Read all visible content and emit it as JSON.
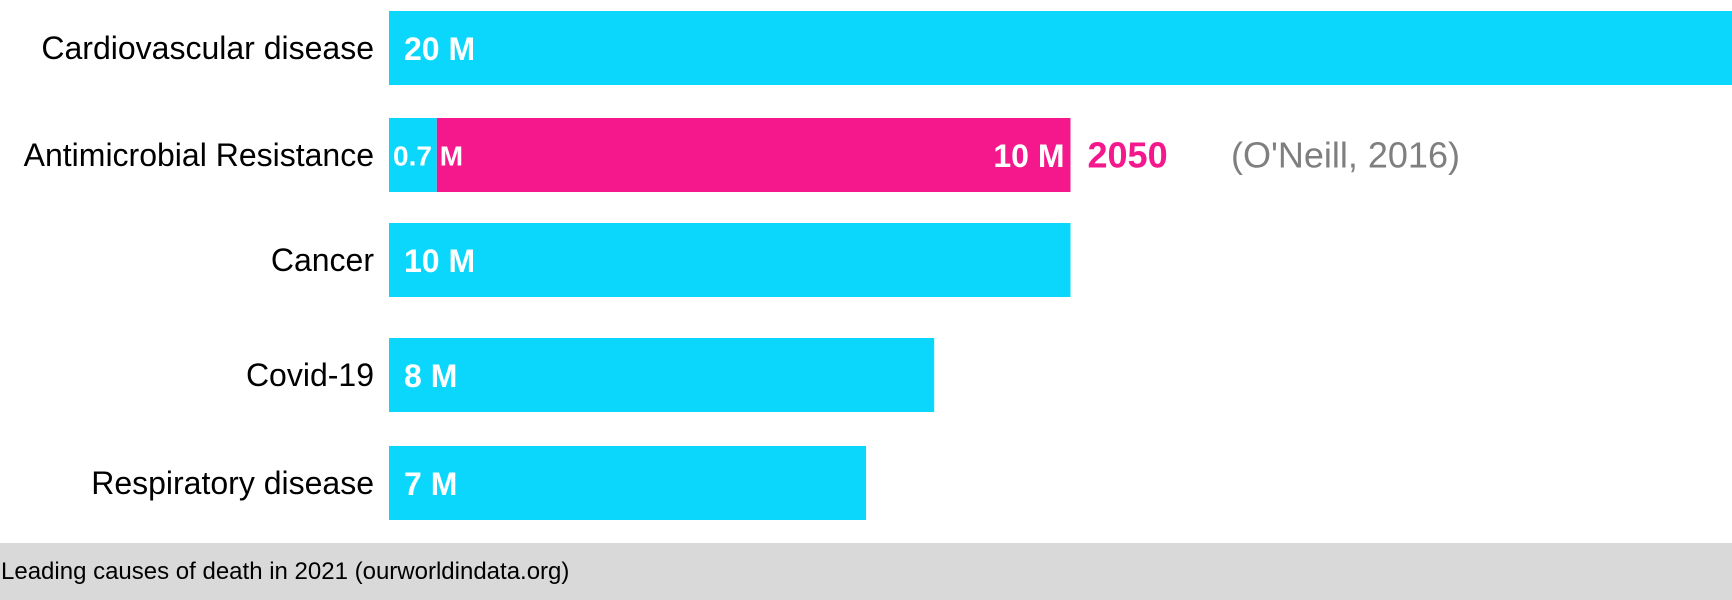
{
  "chart_data": {
    "type": "bar",
    "orientation": "horizontal",
    "categories": [
      "Cardiovascular disease",
      "Antimicrobial Resistance",
      "Cancer",
      "Covid-19",
      "Respiratory disease"
    ],
    "values": [
      20,
      0.7,
      10,
      8,
      7
    ],
    "value_labels": [
      "20 M",
      "0.7 M",
      "10 M",
      "8 M",
      "7 M"
    ],
    "unit": "M",
    "xlim": [
      0,
      20
    ],
    "grid": false,
    "projection": {
      "category": "Antimicrobial Resistance",
      "value": 10,
      "value_label": "10 M",
      "year_label": "2050",
      "citation": "(O'Neill, 2016)"
    },
    "colors": {
      "bar": "#0ad7fb",
      "projection": "#f5188c",
      "citation": "#7f7f7f",
      "footer_bg": "#d9d9d9"
    }
  },
  "footer": {
    "text": "Leading causes of death in 2021 (ourworldindata.org)"
  }
}
